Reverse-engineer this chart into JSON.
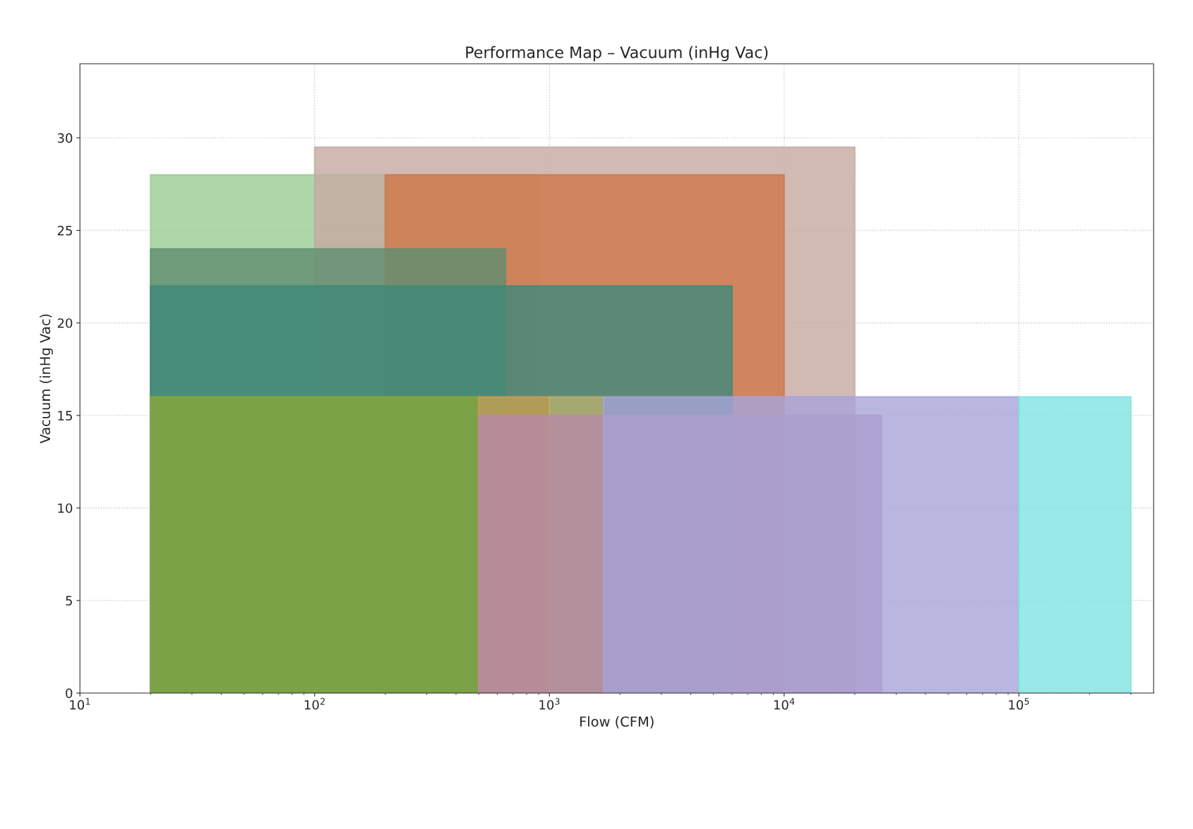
{
  "chart_data": {
    "type": "area",
    "title": "Performance Map – Vacuum (inHg Vac)",
    "xlabel": "Flow (CFM)",
    "ylabel": "Vacuum (inHg Vac)",
    "log": "x",
    "xlim": [
      10,
      375000
    ],
    "ylim": [
      0,
      34
    ],
    "xticks": [
      {
        "value": 10,
        "label": "10$^{1}$"
      },
      {
        "value": 100,
        "label": "10$^{2}$"
      },
      {
        "value": 1000,
        "label": "10$^{3}$"
      },
      {
        "value": 10000,
        "label": "10$^{4}$"
      },
      {
        "value": 100000,
        "label": "10$^{5}$"
      }
    ],
    "yticks": [
      0,
      5,
      10,
      15,
      20,
      25,
      30
    ],
    "grid": true,
    "line_style": "dotted",
    "series": [
      {
        "color": "#98cc94",
        "x": [
          20,
          900
        ],
        "values": [
          28,
          28
        ]
      },
      {
        "color": "#c5a9a1",
        "x": [
          100,
          20000
        ],
        "values": [
          29.5,
          29.5
        ]
      },
      {
        "color": "#d07848",
        "x": [
          200,
          10000
        ],
        "values": [
          28,
          28
        ]
      },
      {
        "color": "#5f8f70",
        "x": [
          20,
          650
        ],
        "values": [
          24,
          24
        ]
      },
      {
        "color": "#3f8a7a",
        "x": [
          20,
          6000
        ],
        "values": [
          22,
          22
        ]
      },
      {
        "color": "#8aa83a",
        "x": [
          20,
          500
        ],
        "values": [
          16,
          16
        ]
      },
      {
        "color": "#c8a050",
        "x": [
          500,
          1000
        ],
        "values": [
          16,
          16
        ]
      },
      {
        "color": "#b8b070",
        "x": [
          1000,
          1700
        ],
        "values": [
          16,
          16
        ]
      },
      {
        "color": "#b888a8",
        "x": [
          500,
          26000
        ],
        "values": [
          15,
          15
        ]
      },
      {
        "color": "#a8a4d8",
        "x": [
          1700,
          100000
        ],
        "values": [
          16,
          16
        ]
      },
      {
        "color": "#80e4e4",
        "x": [
          100000,
          300000
        ],
        "values": [
          16,
          16
        ]
      }
    ]
  }
}
